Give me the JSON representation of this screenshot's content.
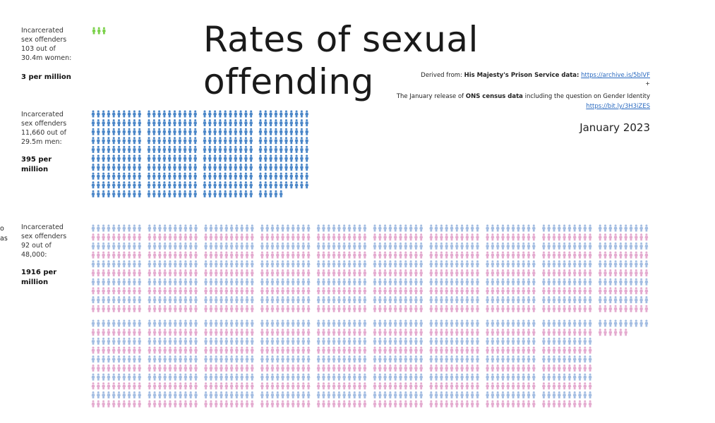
{
  "title": "Rates of sexual offending",
  "source": {
    "derived_prefix": "Derived from: ",
    "prison_label": "His Majesty's Prison Service data:",
    "prison_link": "https://archive.is/5blVF",
    "plus": "+",
    "census_pre": "The January release of ",
    "census_bold": "ONS census data",
    "census_post": " including the question on Gender Identity",
    "census_link": "https://bit.ly/3H3iZES"
  },
  "date": "January 2023",
  "cutoff_text": "o\nas",
  "colors": {
    "women": "#7bd14a",
    "men": "#4a86c8",
    "trans_blue": "#a3bde2",
    "trans_pink": "#e4aacf"
  },
  "icon_name": "person-icon",
  "chart_data": {
    "type": "pictogram",
    "unit": "1 icon = 1 offender",
    "groups": [
      {
        "id": "women",
        "description": "Incarcerated\nsex offenders\n103 out of\n30.4m women:",
        "rate": "3 per million",
        "offenders": 3,
        "icon_color": "women"
      },
      {
        "id": "men",
        "description": "Incarcerated\nsex offenders\n11,660 out of\n29.5m men:",
        "rate": "395 per\nmillion",
        "offenders": 395,
        "icon_color": "men"
      },
      {
        "id": "trans",
        "description": "Incarcerated\nsex offenders\n92 out of\n48,000:",
        "rate": "1916 per\nmillion",
        "offenders": 1916,
        "icon_color": "trans"
      }
    ]
  }
}
